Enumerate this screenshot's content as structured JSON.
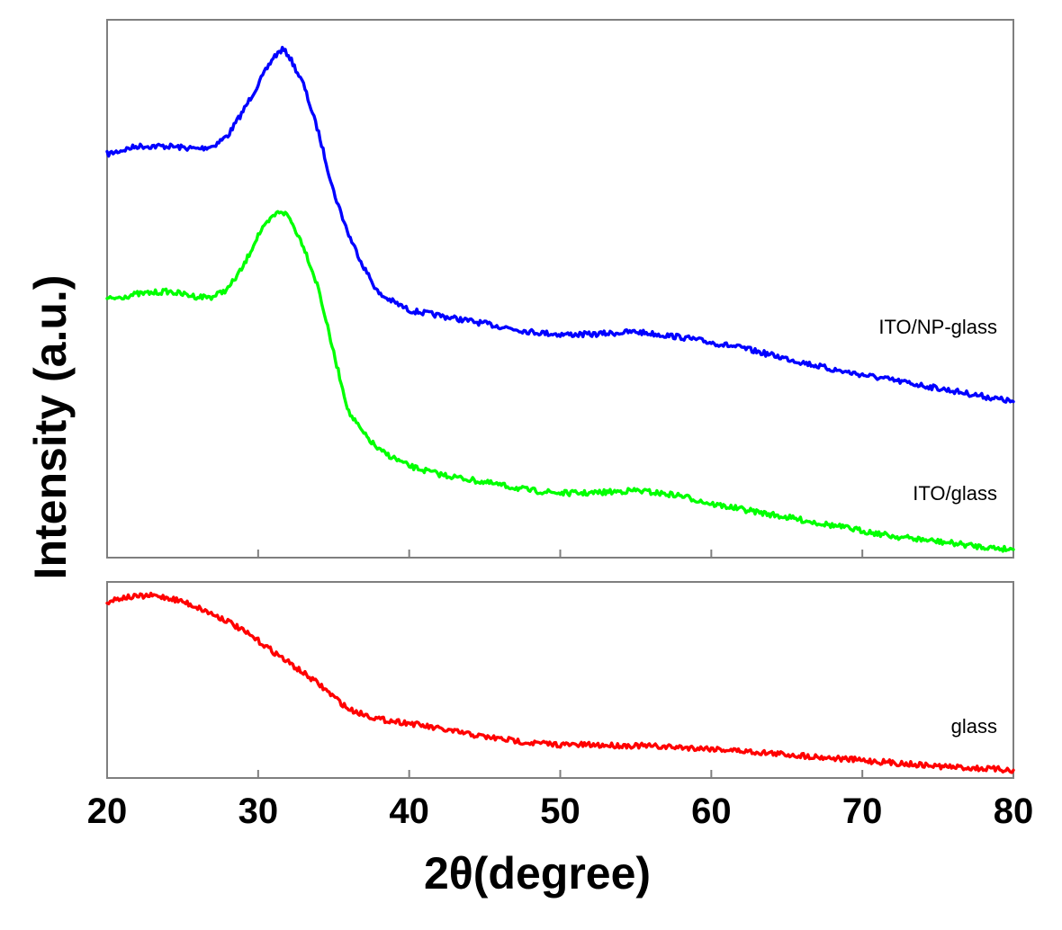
{
  "chart_data": {
    "type": "line",
    "title": "",
    "xlabel": "2θ(degree)",
    "ylabel": "Intensity (a.u.)",
    "xlim": [
      20,
      80
    ],
    "xticks": [
      20,
      30,
      40,
      50,
      60,
      70,
      80
    ],
    "y_units": "arbitrary (normalized 0–1 within each panel)",
    "panels": [
      {
        "name": "top",
        "ylim": [
          0,
          1
        ],
        "series": [
          {
            "name": "ITO/NP-glass",
            "color": "#0000ff",
            "x": [
              20,
              22,
              24,
              26,
              27,
              28,
              29,
              30,
              31,
              31.6,
              32,
              33,
              34,
              35,
              36,
              37,
              38,
              40,
              42,
              45,
              48,
              50,
              52,
              55,
              58,
              60,
              62,
              65,
              68,
              70,
              72,
              75,
              78,
              80
            ],
            "y": [
              0.75,
              0.765,
              0.765,
              0.76,
              0.765,
              0.785,
              0.83,
              0.88,
              0.93,
              0.945,
              0.935,
              0.88,
              0.79,
              0.68,
              0.6,
              0.54,
              0.49,
              0.46,
              0.45,
              0.435,
              0.42,
              0.415,
              0.415,
              0.42,
              0.41,
              0.4,
              0.39,
              0.37,
              0.35,
              0.34,
              0.33,
              0.315,
              0.3,
              0.29
            ]
          },
          {
            "name": "ITO/glass",
            "color": "#00ff00",
            "x": [
              20,
              22,
              24,
              26,
              27,
              28,
              29,
              30,
              31,
              31.5,
              32,
              33,
              34,
              35,
              36,
              37,
              38,
              40,
              42,
              45,
              48,
              50,
              52,
              55,
              58,
              60,
              62,
              65,
              68,
              70,
              72,
              75,
              78,
              80
            ],
            "y": [
              0.48,
              0.49,
              0.495,
              0.485,
              0.485,
              0.5,
              0.54,
              0.6,
              0.635,
              0.645,
              0.635,
              0.58,
              0.5,
              0.38,
              0.27,
              0.23,
              0.2,
              0.17,
              0.155,
              0.14,
              0.125,
              0.12,
              0.12,
              0.125,
              0.115,
              0.1,
              0.09,
              0.075,
              0.06,
              0.05,
              0.04,
              0.03,
              0.02,
              0.015
            ]
          }
        ]
      },
      {
        "name": "bottom",
        "ylim": [
          0,
          1
        ],
        "series": [
          {
            "name": "glass",
            "color": "#ff0000",
            "x": [
              20,
              21,
              22,
              23,
              24,
              25,
              26,
              28,
              30,
              32,
              34,
              36,
              38,
              40,
              42,
              45,
              48,
              50,
              55,
              60,
              65,
              70,
              75,
              80
            ],
            "y": [
              0.9,
              0.92,
              0.925,
              0.93,
              0.92,
              0.9,
              0.87,
              0.8,
              0.7,
              0.59,
              0.48,
              0.35,
              0.3,
              0.28,
              0.25,
              0.21,
              0.18,
              0.17,
              0.165,
              0.15,
              0.12,
              0.09,
              0.06,
              0.04
            ]
          }
        ]
      }
    ]
  }
}
